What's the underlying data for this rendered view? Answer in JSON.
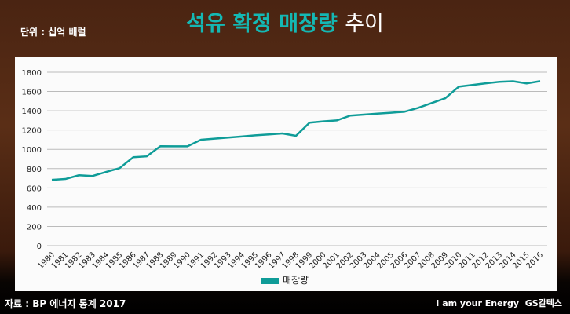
{
  "title_highlight": "석유 확정 매장량",
  "title_rest": "추이",
  "unit_label": "단위 : 십억 배럴",
  "source": "자료 : BP 에너지 통계 2017",
  "brand": {
    "slogan": "I am your Energy",
    "logo": "GS칼텍스"
  },
  "chart_data": {
    "type": "line",
    "title": "석유 확정 매장량 추이",
    "ylabel": "단위 : 십억 배럴",
    "ylim": [
      0,
      1800
    ],
    "yticks": [
      0,
      200,
      400,
      600,
      800,
      1000,
      1200,
      1400,
      1600,
      1800
    ],
    "grid": true,
    "legend_position": "bottom",
    "categories": [
      "1980",
      "1981",
      "1982",
      "1983",
      "1984",
      "1985",
      "1986",
      "1987",
      "1988",
      "1989",
      "1990",
      "1991",
      "1992",
      "1993",
      "1994",
      "1995",
      "1996",
      "1997",
      "1998",
      "1999",
      "2000",
      "2001",
      "2002",
      "2003",
      "2004",
      "2005",
      "2006",
      "2007",
      "2008",
      "2009",
      "2010",
      "2011",
      "2012",
      "2013",
      "2014",
      "2015",
      "2016"
    ],
    "series": [
      {
        "name": "매장량",
        "color": "#0f9c98",
        "values": [
          683,
          692,
          731,
          723,
          765,
          805,
          918,
          927,
          1032,
          1031,
          1031,
          1100,
          1111,
          1122,
          1133,
          1145,
          1155,
          1165,
          1140,
          1277,
          1290,
          1300,
          1350,
          1360,
          1370,
          1380,
          1390,
          1430,
          1480,
          1530,
          1650,
          1668,
          1685,
          1700,
          1706,
          1684,
          1707
        ]
      }
    ]
  }
}
